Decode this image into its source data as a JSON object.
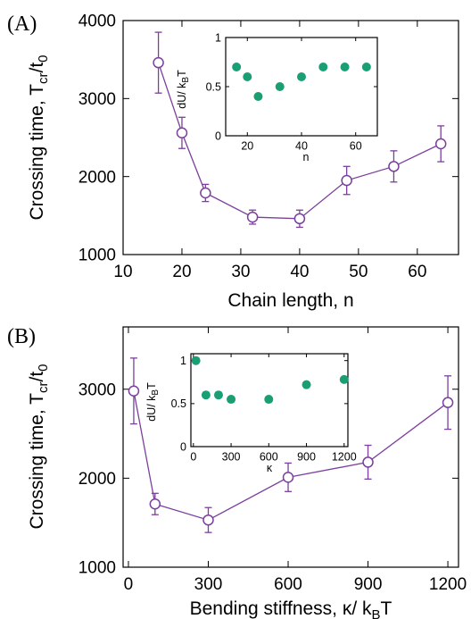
{
  "colors": {
    "main": "#7b3f9e",
    "inset": "#1a9e74",
    "axis": "#000000"
  },
  "chart_data": [
    {
      "panel_label": "(A)",
      "type": "line",
      "xlabel": "Chain length, n",
      "ylabel": "Crossing time, T",
      "ylabel_sub": "cr",
      "ylabel_tail": "/t",
      "ylabel_tail_sub": "0",
      "xlim": [
        10,
        67
      ],
      "ylim": [
        1000,
        4000
      ],
      "xticks": [
        10,
        20,
        30,
        40,
        50,
        60
      ],
      "yticks": [
        1000,
        2000,
        3000,
        4000
      ],
      "x": [
        16,
        20,
        24,
        32,
        40,
        48,
        56,
        64
      ],
      "y": [
        3460,
        2560,
        1790,
        1480,
        1460,
        1950,
        2130,
        2420
      ],
      "err": [
        390,
        200,
        110,
        90,
        110,
        180,
        200,
        230
      ],
      "marker": "open-circle",
      "inset": {
        "type": "scatter",
        "xlabel": "n",
        "ylabel": "dU/ k",
        "ylabel_sub": "B",
        "ylabel_tail": "T",
        "xlim": [
          12,
          68
        ],
        "ylim": [
          0,
          1
        ],
        "xticks": [
          20,
          40,
          60
        ],
        "yticks": [
          0,
          0.5,
          1
        ],
        "x": [
          16,
          20,
          24,
          32,
          40,
          48,
          56,
          64
        ],
        "y": [
          0.7,
          0.6,
          0.4,
          0.5,
          0.6,
          0.7,
          0.7,
          0.7
        ]
      }
    },
    {
      "panel_label": "(B)",
      "type": "line",
      "xlabel": "Bending stiffness, κ/ k",
      "xlabel_sub": "B",
      "xlabel_tail": "T",
      "ylabel": "Crossing time, T",
      "ylabel_sub": "cr",
      "ylabel_tail": "/t",
      "ylabel_tail_sub": "0",
      "xlim": [
        -20,
        1240
      ],
      "ylim": [
        1000,
        3700
      ],
      "xticks": [
        0,
        300,
        600,
        900,
        1200
      ],
      "yticks": [
        1000,
        2000,
        3000
      ],
      "x": [
        20,
        100,
        300,
        600,
        900,
        1200
      ],
      "y": [
        2980,
        1710,
        1530,
        2010,
        2180,
        2850
      ],
      "err": [
        370,
        120,
        140,
        160,
        190,
        300
      ],
      "marker": "open-circle",
      "inset": {
        "type": "scatter",
        "xlabel": "κ",
        "ylabel": "dU/ k",
        "ylabel_sub": "B",
        "ylabel_tail": "T",
        "xlim": [
          -20,
          1230
        ],
        "ylim": [
          0,
          1.08
        ],
        "xticks": [
          0,
          300,
          600,
          900,
          1200
        ],
        "yticks": [
          0,
          0.5,
          1
        ],
        "x": [
          20,
          100,
          200,
          300,
          600,
          900,
          1200
        ],
        "y": [
          1.0,
          0.6,
          0.6,
          0.55,
          0.55,
          0.72,
          0.78
        ]
      }
    }
  ]
}
